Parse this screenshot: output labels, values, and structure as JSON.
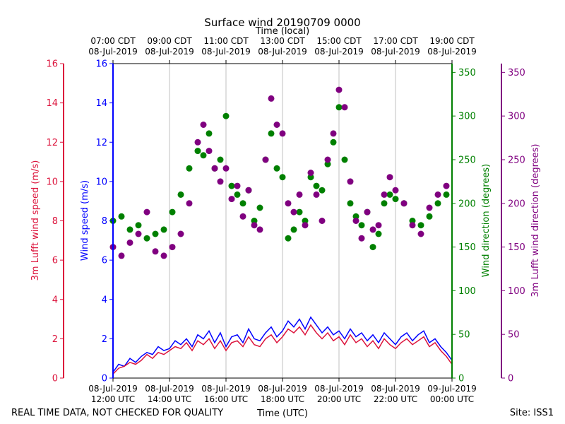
{
  "chart_data": {
    "type": "scatter",
    "title": "Surface wind 20190709 0000",
    "top_xlabel": "Time (local)",
    "bottom_xlabel": "Time (UTC)",
    "footer_left": "REAL TIME DATA, NOT CHECKED FOR QUALITY",
    "footer_right": "Site: ISS1",
    "x_range_hours_utc": [
      12,
      24
    ],
    "bottom_ticks": [
      {
        "hour": 12,
        "line1": "08-Jul-2019",
        "line2": "12:00 UTC"
      },
      {
        "hour": 14,
        "line1": "08-Jul-2019",
        "line2": "14:00 UTC"
      },
      {
        "hour": 16,
        "line1": "08-Jul-2019",
        "line2": "16:00 UTC"
      },
      {
        "hour": 18,
        "line1": "08-Jul-2019",
        "line2": "18:00 UTC"
      },
      {
        "hour": 20,
        "line1": "08-Jul-2019",
        "line2": "20:00 UTC"
      },
      {
        "hour": 22,
        "line1": "08-Jul-2019",
        "line2": "22:00 UTC"
      },
      {
        "hour": 24,
        "line1": "09-Jul-2019",
        "line2": "00:00 UTC"
      }
    ],
    "top_ticks": [
      {
        "hour": 12,
        "line1": "07:00 CDT",
        "line2": "08-Jul-2019"
      },
      {
        "hour": 14,
        "line1": "09:00 CDT",
        "line2": "08-Jul-2019"
      },
      {
        "hour": 16,
        "line1": "11:00 CDT",
        "line2": "08-Jul-2019"
      },
      {
        "hour": 18,
        "line1": "13:00 CDT",
        "line2": "08-Jul-2019"
      },
      {
        "hour": 20,
        "line1": "15:00 CDT",
        "line2": "08-Jul-2019"
      },
      {
        "hour": 22,
        "line1": "17:00 CDT",
        "line2": "08-Jul-2019"
      },
      {
        "hour": 24,
        "line1": "19:00 CDT",
        "line2": "08-Jul-2019"
      }
    ],
    "axes": {
      "wind_speed": {
        "label": "Wind speed (m/s)",
        "range": [
          0,
          16
        ],
        "ticks": [
          0,
          2,
          4,
          6,
          8,
          10,
          12,
          14,
          16
        ],
        "color": "#0000ff"
      },
      "lufft_speed": {
        "label": "3m Lufft wind speed (m/s)",
        "range": [
          0,
          16
        ],
        "ticks": [
          0,
          2,
          4,
          6,
          8,
          10,
          12,
          14,
          16
        ],
        "color": "#dc143c"
      },
      "wind_direction": {
        "label": "Wind direction (degrees)",
        "range": [
          0,
          360
        ],
        "ticks": [
          0,
          50,
          100,
          150,
          200,
          250,
          300,
          350
        ],
        "color": "#008000"
      },
      "lufft_direction": {
        "label": "3m Lufft wind direction (degrees)",
        "range": [
          0,
          360
        ],
        "ticks": [
          0,
          50,
          100,
          150,
          200,
          250,
          300,
          350
        ],
        "color": "#800080"
      }
    },
    "series": [
      {
        "name": "Wind speed",
        "kind": "line",
        "axis": "wind_speed",
        "color": "#0000ff",
        "x": [
          12.0,
          12.2,
          12.4,
          12.6,
          12.8,
          13.0,
          13.2,
          13.4,
          13.6,
          13.8,
          14.0,
          14.2,
          14.4,
          14.6,
          14.8,
          15.0,
          15.2,
          15.4,
          15.6,
          15.8,
          16.0,
          16.2,
          16.4,
          16.6,
          16.8,
          17.0,
          17.2,
          17.4,
          17.6,
          17.8,
          18.0,
          18.2,
          18.4,
          18.6,
          18.8,
          19.0,
          19.2,
          19.4,
          19.6,
          19.8,
          20.0,
          20.2,
          20.4,
          20.6,
          20.8,
          21.0,
          21.2,
          21.4,
          21.6,
          21.8,
          22.0,
          22.2,
          22.4,
          22.6,
          22.8,
          23.0,
          23.2,
          23.4,
          23.6,
          23.8,
          24.0
        ],
        "y": [
          0.3,
          0.7,
          0.6,
          1.0,
          0.8,
          1.1,
          1.3,
          1.2,
          1.6,
          1.4,
          1.5,
          1.9,
          1.7,
          2.0,
          1.6,
          2.2,
          2.0,
          2.4,
          1.8,
          2.3,
          1.6,
          2.1,
          2.2,
          1.8,
          2.5,
          2.0,
          1.9,
          2.3,
          2.6,
          2.1,
          2.4,
          2.9,
          2.6,
          3.0,
          2.5,
          3.1,
          2.7,
          2.3,
          2.6,
          2.2,
          2.4,
          2.0,
          2.5,
          2.1,
          2.3,
          1.9,
          2.2,
          1.8,
          2.3,
          2.0,
          1.7,
          2.1,
          2.3,
          1.9,
          2.2,
          2.4,
          1.8,
          2.0,
          1.6,
          1.3,
          0.9
        ]
      },
      {
        "name": "3m Lufft wind speed",
        "kind": "line",
        "axis": "lufft_speed",
        "color": "#dc143c",
        "x": [
          12.0,
          12.2,
          12.4,
          12.6,
          12.8,
          13.0,
          13.2,
          13.4,
          13.6,
          13.8,
          14.0,
          14.2,
          14.4,
          14.6,
          14.8,
          15.0,
          15.2,
          15.4,
          15.6,
          15.8,
          16.0,
          16.2,
          16.4,
          16.6,
          16.8,
          17.0,
          17.2,
          17.4,
          17.6,
          17.8,
          18.0,
          18.2,
          18.4,
          18.6,
          18.8,
          19.0,
          19.2,
          19.4,
          19.6,
          19.8,
          20.0,
          20.2,
          20.4,
          20.6,
          20.8,
          21.0,
          21.2,
          21.4,
          21.6,
          21.8,
          22.0,
          22.2,
          22.4,
          22.6,
          22.8,
          23.0,
          23.2,
          23.4,
          23.6,
          23.8,
          24.0
        ],
        "y": [
          0.2,
          0.5,
          0.6,
          0.8,
          0.7,
          0.9,
          1.2,
          1.0,
          1.3,
          1.2,
          1.4,
          1.6,
          1.5,
          1.8,
          1.4,
          1.9,
          1.7,
          2.0,
          1.5,
          1.9,
          1.4,
          1.8,
          1.9,
          1.6,
          2.1,
          1.7,
          1.6,
          2.0,
          2.2,
          1.8,
          2.1,
          2.5,
          2.3,
          2.6,
          2.2,
          2.7,
          2.3,
          2.0,
          2.3,
          1.9,
          2.1,
          1.7,
          2.2,
          1.8,
          2.0,
          1.6,
          1.9,
          1.5,
          2.0,
          1.7,
          1.5,
          1.8,
          2.0,
          1.7,
          1.9,
          2.1,
          1.6,
          1.8,
          1.4,
          1.1,
          0.7
        ]
      },
      {
        "name": "Wind direction",
        "kind": "scatter",
        "axis": "wind_direction",
        "color": "#008000",
        "x": [
          12.0,
          12.3,
          12.6,
          12.9,
          13.2,
          13.5,
          13.8,
          14.1,
          14.4,
          14.7,
          15.0,
          15.2,
          15.4,
          15.6,
          15.8,
          16.0,
          16.2,
          16.4,
          16.6,
          16.8,
          17.0,
          17.2,
          17.4,
          17.6,
          17.8,
          18.0,
          18.2,
          18.4,
          18.6,
          18.8,
          19.0,
          19.2,
          19.4,
          19.6,
          19.8,
          20.0,
          20.2,
          20.4,
          20.6,
          20.8,
          21.0,
          21.2,
          21.4,
          21.6,
          21.8,
          22.0,
          22.3,
          22.6,
          22.9,
          23.2,
          23.5,
          23.8
        ],
        "y": [
          180,
          185,
          170,
          175,
          160,
          165,
          170,
          190,
          210,
          240,
          260,
          255,
          280,
          240,
          250,
          300,
          220,
          210,
          200,
          215,
          180,
          195,
          250,
          280,
          240,
          230,
          160,
          170,
          190,
          180,
          230,
          220,
          215,
          245,
          270,
          310,
          250,
          200,
          185,
          175,
          190,
          150,
          165,
          200,
          210,
          205,
          200,
          180,
          175,
          185,
          200,
          210
        ]
      },
      {
        "name": "3m Lufft wind direction",
        "kind": "scatter",
        "axis": "lufft_direction",
        "color": "#800080",
        "x": [
          12.0,
          12.3,
          12.6,
          12.9,
          13.2,
          13.5,
          13.8,
          14.1,
          14.4,
          14.7,
          15.0,
          15.2,
          15.4,
          15.6,
          15.8,
          16.0,
          16.2,
          16.4,
          16.6,
          16.8,
          17.0,
          17.2,
          17.4,
          17.6,
          17.8,
          18.0,
          18.2,
          18.4,
          18.6,
          18.8,
          19.0,
          19.2,
          19.4,
          19.6,
          19.8,
          20.0,
          20.2,
          20.4,
          20.6,
          20.8,
          21.0,
          21.2,
          21.4,
          21.6,
          21.8,
          22.0,
          22.3,
          22.6,
          22.9,
          23.2,
          23.5,
          23.8
        ],
        "y": [
          150,
          140,
          155,
          165,
          190,
          145,
          140,
          150,
          165,
          200,
          270,
          290,
          260,
          240,
          225,
          240,
          205,
          220,
          185,
          215,
          175,
          170,
          250,
          320,
          290,
          280,
          200,
          190,
          210,
          175,
          235,
          210,
          180,
          250,
          280,
          330,
          310,
          225,
          180,
          160,
          190,
          170,
          175,
          210,
          230,
          215,
          200,
          175,
          165,
          195,
          210,
          220
        ]
      }
    ]
  }
}
